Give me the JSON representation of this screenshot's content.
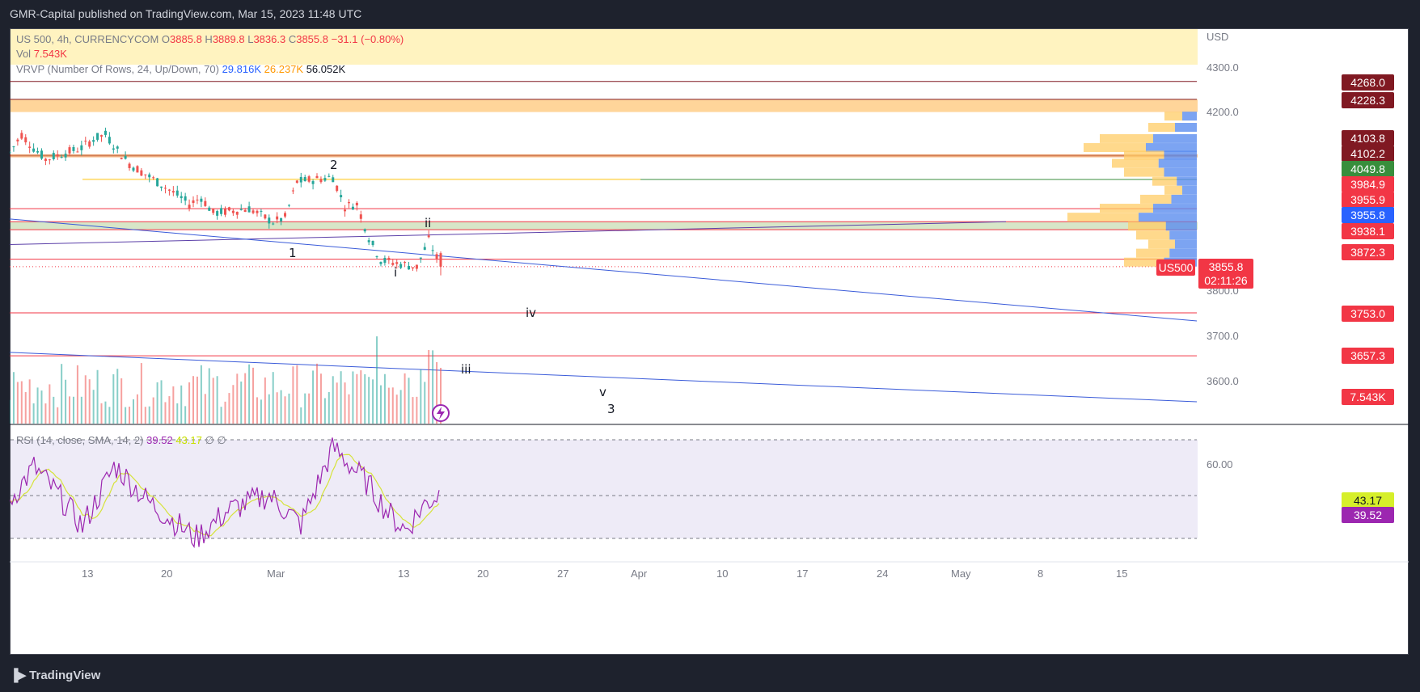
{
  "header": {
    "published": "GMR-Capital published on TradingView.com, Mar 15, 2023 11:48 UTC"
  },
  "footer": {
    "brand": "TradingView",
    "logo_icon": "tradingview-logo-icon"
  },
  "legend": {
    "symbol": "US 500, 4h, CURRENCYCOM",
    "open_label": "O",
    "open": "3885.8",
    "high_label": "H",
    "high": "3889.8",
    "low_label": "L",
    "low": "3836.3",
    "close_label": "C",
    "close": "3855.8",
    "change": "−31.1 (−0.80%)",
    "vol_label": "Vol",
    "vol": "7.543K",
    "vrvp_label": "VRVP (Number Of Rows, 24, Up/Down, 70)",
    "vrvp_up": "29.816K",
    "vrvp_down": "26.237K",
    "vrvp_total": "56.052K",
    "rsi_label": "RSI (14, close, SMA, 14, 2)",
    "rsi_value": "39.52",
    "rsi_sma": "43.17",
    "rsi_extra": "∅ ∅"
  },
  "colors": {
    "up": "#26a69a",
    "down": "#ef5350",
    "level": "#f23645",
    "dark_level": "#801922",
    "green_level": "#388e3c",
    "blue_level": "#2962ff",
    "zone_yellow": "#fff3c0",
    "zone_orange": "#ffd59a",
    "zone_green": "#d7e6c8",
    "rsi_line": "#9c27b0",
    "rsi_sma": "#d6e33a",
    "rsi_band": "#eeebf7",
    "trendline": "#3a5bd9"
  },
  "price_axis": {
    "currency": "USD",
    "ticks": [
      "4300.0",
      "4200.0",
      "3800.0",
      "3700.0",
      "3600.0"
    ]
  },
  "price_badges": [
    {
      "label": "4268.0",
      "color": "#801922"
    },
    {
      "label": "4228.3",
      "color": "#801922"
    },
    {
      "label": "4103.8",
      "color": "#801922"
    },
    {
      "label": "4102.2",
      "color": "#801922"
    },
    {
      "label": "4049.8",
      "color": "#388e3c"
    },
    {
      "label": "3984.9",
      "color": "#f23645"
    },
    {
      "label": "3955.9",
      "color": "#f23645"
    },
    {
      "label": "3955.8",
      "color": "#2962ff"
    },
    {
      "label": "3938.1",
      "color": "#f23645"
    },
    {
      "label": "3872.3",
      "color": "#f23645"
    },
    {
      "label": "3855.8",
      "color": "#f23645"
    },
    {
      "label": "02:11:26",
      "color": "#f23645"
    },
    {
      "label": "3753.0",
      "color": "#f23645"
    },
    {
      "label": "3657.3",
      "color": "#f23645"
    },
    {
      "label": "7.543K",
      "color": "#f23645"
    }
  ],
  "symbol_tag": "US500",
  "rsi_axis": {
    "tick": "60.00",
    "sma_badge": "43.17",
    "rsi_badge": "39.52"
  },
  "time_axis": [
    "13",
    "20",
    "Mar",
    "13",
    "20",
    "27",
    "Apr",
    "10",
    "17",
    "24",
    "May",
    "8",
    "15"
  ],
  "wave_labels": [
    "1",
    "2",
    "i",
    "ii",
    "iii",
    "iv",
    "v",
    "3"
  ],
  "chart_data": {
    "type": "candlestick",
    "title": "US 500, 4h, CURRENCYCOM",
    "ylabel": "USD",
    "ylim": [
      3560,
      4350
    ],
    "close_path": [
      {
        "d": "2023-02-07",
        "c": 4110
      },
      {
        "d": "2023-02-08",
        "c": 4150
      },
      {
        "d": "2023-02-09",
        "c": 4120
      },
      {
        "d": "2023-02-10",
        "c": 4095
      },
      {
        "d": "2023-02-13",
        "c": 4120
      },
      {
        "d": "2023-02-14",
        "c": 4140
      },
      {
        "d": "2023-02-15",
        "c": 4150
      },
      {
        "d": "2023-02-16",
        "c": 4115
      },
      {
        "d": "2023-02-17",
        "c": 4085
      },
      {
        "d": "2023-02-21",
        "c": 4015
      },
      {
        "d": "2023-02-22",
        "c": 3995
      },
      {
        "d": "2023-02-23",
        "c": 4010
      },
      {
        "d": "2023-02-24",
        "c": 3975
      },
      {
        "d": "2023-02-27",
        "c": 3985
      },
      {
        "d": "2023-02-28",
        "c": 3970
      },
      {
        "d": "2023-03-01",
        "c": 3955
      },
      {
        "d": "2023-03-02",
        "c": 3965
      },
      {
        "d": "2023-03-03",
        "c": 4045
      },
      {
        "d": "2023-03-06",
        "c": 4055
      },
      {
        "d": "2023-03-07",
        "c": 3990
      },
      {
        "d": "2023-03-08",
        "c": 3995
      },
      {
        "d": "2023-03-09",
        "c": 3920
      },
      {
        "d": "2023-03-10",
        "c": 3870
      },
      {
        "d": "2023-03-13",
        "c": 3855
      },
      {
        "d": "2023-03-14",
        "c": 3915
      },
      {
        "d": "2023-03-15",
        "c": 3855.8
      }
    ],
    "horizontal_levels": [
      4268.0,
      4228.3,
      4103.8,
      4102.2,
      4049.8,
      3984.9,
      3955.9,
      3938.1,
      3872.3,
      3753.0,
      3657.3
    ],
    "zones": [
      {
        "from": 4228.3,
        "to": 4200,
        "color": "orange"
      },
      {
        "from": 3955.8,
        "to": 3938.1,
        "color": "green"
      }
    ],
    "rsi": {
      "ylim": [
        20,
        80
      ],
      "levels": [
        70,
        50,
        30
      ],
      "last": 39.52,
      "sma_last": 43.17
    },
    "volume_last": "7.543K"
  }
}
